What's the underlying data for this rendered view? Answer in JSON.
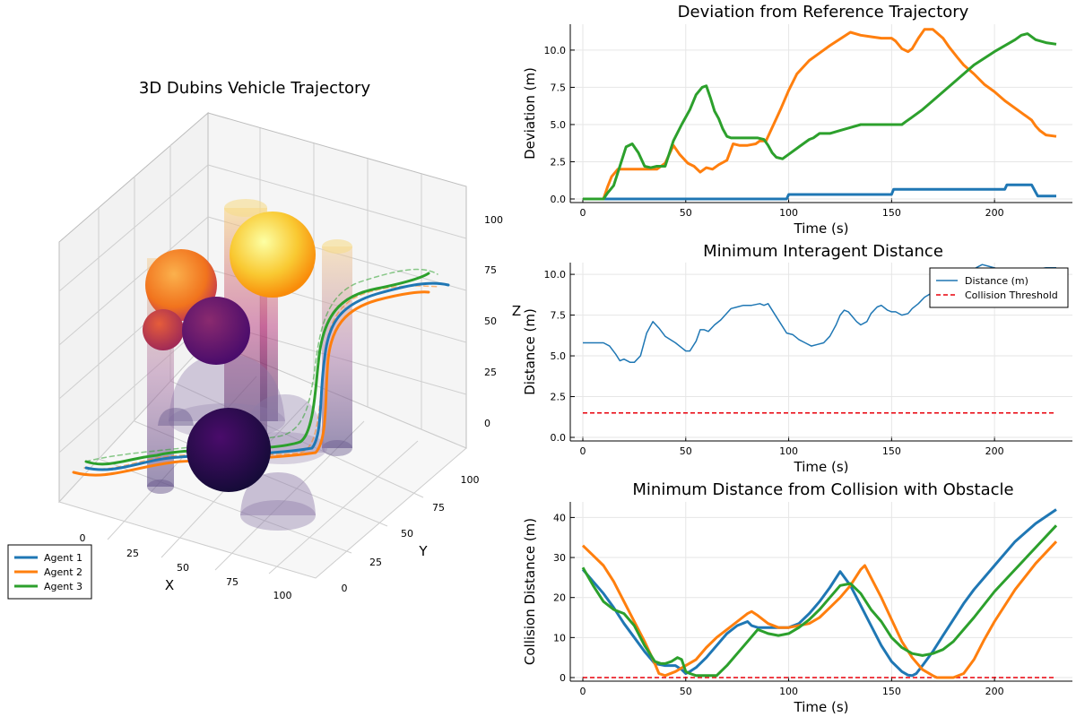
{
  "chart_data": [
    {
      "type": "3d-trajectory",
      "title": "3D Dubins Vehicle Trajectory",
      "xlabel": "X",
      "ylabel": "Y",
      "zlabel": "Z",
      "x_ticks": [
        "0",
        "25",
        "50",
        "75",
        "100"
      ],
      "y_ticks": [
        "0",
        "25",
        "50",
        "75",
        "100"
      ],
      "z_ticks": [
        "0",
        "25",
        "50",
        "75",
        "100"
      ],
      "legend": [
        "Agent 1",
        "Agent 2",
        "Agent 3"
      ],
      "legend_position": "bottom-left",
      "series_colors": [
        "#1f77b4",
        "#ff7f0e",
        "#2ca02c"
      ]
    },
    {
      "type": "line",
      "title": "Deviation from Reference Trajectory",
      "xlabel": "Time (s)",
      "ylabel": "Deviation (m)",
      "xlim": [
        0,
        230
      ],
      "ylim": [
        0,
        11.5
      ],
      "x_ticks": [
        "0",
        "50",
        "100",
        "150",
        "200"
      ],
      "y_ticks": [
        "0.0",
        "2.5",
        "5.0",
        "7.5",
        "10.0"
      ],
      "grid": true,
      "series": [
        {
          "color": "#1f77b4",
          "x": [
            0,
            99,
            100,
            150,
            151,
            205,
            206,
            218,
            221,
            230
          ],
          "y": [
            0,
            0,
            0.3,
            0.3,
            0.65,
            0.65,
            0.95,
            0.95,
            0.2,
            0.2
          ]
        },
        {
          "color": "#ff7f0e",
          "x": [
            0,
            10,
            12,
            14,
            17,
            20,
            25,
            30,
            33,
            36,
            40,
            44,
            47,
            51,
            54,
            57,
            60,
            63,
            66,
            70,
            73,
            76,
            80,
            84,
            86,
            89,
            92,
            96,
            100,
            104,
            110,
            115,
            120,
            130,
            135,
            140,
            145,
            150,
            152,
            155,
            158,
            160,
            163,
            166,
            170,
            175,
            178,
            182,
            185,
            190,
            195,
            200,
            205,
            210,
            215,
            218,
            220,
            222,
            225,
            230
          ],
          "y": [
            0,
            0,
            0.8,
            1.5,
            2.0,
            2.0,
            2.0,
            2.0,
            2.0,
            2.0,
            2.4,
            3.6,
            3.0,
            2.4,
            2.2,
            1.8,
            2.1,
            2.0,
            2.3,
            2.6,
            3.7,
            3.6,
            3.6,
            3.7,
            3.9,
            3.9,
            4.8,
            6.0,
            7.3,
            8.4,
            9.3,
            9.8,
            10.3,
            11.2,
            11.0,
            10.9,
            10.8,
            10.8,
            10.6,
            10.1,
            9.9,
            10.1,
            10.8,
            11.4,
            11.4,
            10.8,
            10.2,
            9.5,
            9.0,
            8.4,
            7.7,
            7.2,
            6.6,
            6.1,
            5.6,
            5.3,
            4.9,
            4.6,
            4.3,
            4.2
          ]
        },
        {
          "color": "#2ca02c",
          "x": [
            0,
            10,
            12,
            15,
            18,
            21,
            24,
            27,
            30,
            33,
            36,
            40,
            44,
            48,
            52,
            55,
            58,
            60,
            62,
            64,
            66,
            68,
            70,
            72,
            74,
            80,
            85,
            88,
            90,
            92,
            94,
            97,
            100,
            105,
            110,
            112,
            115,
            120,
            125,
            130,
            135,
            140,
            145,
            150,
            155,
            157,
            160,
            165,
            170,
            180,
            190,
            200,
            205,
            210,
            213,
            216,
            220,
            225,
            230
          ],
          "y": [
            0,
            0,
            0.4,
            0.9,
            2.2,
            3.5,
            3.7,
            3.1,
            2.2,
            2.1,
            2.2,
            2.2,
            3.9,
            5.0,
            6.0,
            7.0,
            7.5,
            7.6,
            6.8,
            5.9,
            5.4,
            4.7,
            4.2,
            4.1,
            4.1,
            4.1,
            4.1,
            4.0,
            3.6,
            3.1,
            2.8,
            2.7,
            3.0,
            3.5,
            4.0,
            4.1,
            4.4,
            4.4,
            4.6,
            4.8,
            5.0,
            5.0,
            5.0,
            5.0,
            5.0,
            5.2,
            5.5,
            6.0,
            6.6,
            7.8,
            9.0,
            9.9,
            10.3,
            10.7,
            11.0,
            11.1,
            10.7,
            10.5,
            10.4
          ]
        }
      ]
    },
    {
      "type": "line",
      "title": "Minimum Interagent Distance",
      "xlabel": "Time (s)",
      "ylabel": "Distance (m)",
      "xlim": [
        0,
        230
      ],
      "ylim": [
        0,
        10.5
      ],
      "x_ticks": [
        "0",
        "50",
        "100",
        "150",
        "200"
      ],
      "y_ticks": [
        "0.0",
        "2.5",
        "5.0",
        "7.5",
        "10.0"
      ],
      "grid": true,
      "legend_position": "top-right",
      "series": [
        {
          "name": "Distance (m)",
          "color": "#1f77b4",
          "dashed": false,
          "x": [
            0,
            10,
            13,
            16,
            18,
            20,
            23,
            25,
            28,
            31,
            34,
            37,
            40,
            45,
            50,
            52,
            55,
            57,
            59,
            61,
            64,
            67,
            72,
            75,
            78,
            82,
            86,
            88,
            90,
            93,
            96,
            99,
            102,
            105,
            108,
            111,
            114,
            117,
            120,
            123,
            125,
            127,
            129,
            131,
            133,
            135,
            138,
            140,
            143,
            145,
            148,
            150,
            152,
            155,
            158,
            160,
            163,
            166,
            170,
            175,
            180,
            185,
            188,
            191,
            194,
            197,
            200,
            205,
            210,
            215,
            220,
            225,
            230
          ],
          "y": [
            5.8,
            5.8,
            5.6,
            5.1,
            4.7,
            4.8,
            4.6,
            4.6,
            5.0,
            6.4,
            7.1,
            6.7,
            6.2,
            5.8,
            5.3,
            5.3,
            5.9,
            6.6,
            6.6,
            6.5,
            6.9,
            7.2,
            7.9,
            8.0,
            8.1,
            8.1,
            8.2,
            8.1,
            8.2,
            7.6,
            7.0,
            6.4,
            6.3,
            6.0,
            5.8,
            5.6,
            5.7,
            5.8,
            6.2,
            6.9,
            7.5,
            7.8,
            7.7,
            7.4,
            7.1,
            6.9,
            7.1,
            7.6,
            8.0,
            8.1,
            7.8,
            7.7,
            7.7,
            7.5,
            7.6,
            7.9,
            8.2,
            8.6,
            8.9,
            9.2,
            9.6,
            9.8,
            10.1,
            10.4,
            10.6,
            10.5,
            10.4,
            10.2,
            10.2,
            10.3,
            10.3,
            10.4,
            10.4
          ]
        },
        {
          "name": "Collision Threshold",
          "color": "#e8000b",
          "dashed": true,
          "x": [
            0,
            230
          ],
          "y": [
            1.5,
            1.5
          ]
        }
      ]
    },
    {
      "type": "line",
      "title": "Minimum Distance from Collision with Obstacle",
      "xlabel": "Time (s)",
      "ylabel": "Collision Distance (m)",
      "xlim": [
        0,
        230
      ],
      "ylim": [
        0,
        43
      ],
      "x_ticks": [
        "0",
        "50",
        "100",
        "150",
        "200"
      ],
      "y_ticks": [
        "0",
        "10",
        "20",
        "30",
        "40"
      ],
      "grid": true,
      "series": [
        {
          "color": "#e8000b",
          "dashed": true,
          "x": [
            0,
            230
          ],
          "y": [
            0,
            0
          ]
        },
        {
          "color": "#1f77b4",
          "x": [
            0,
            5,
            10,
            15,
            20,
            25,
            30,
            35,
            40,
            45,
            48,
            50,
            52,
            55,
            60,
            65,
            70,
            75,
            80,
            82,
            85,
            90,
            95,
            100,
            105,
            110,
            115,
            120,
            125,
            130,
            135,
            140,
            145,
            150,
            155,
            158,
            160,
            162,
            165,
            170,
            175,
            180,
            185,
            190,
            195,
            200,
            210,
            220,
            230
          ],
          "y": [
            27,
            24,
            21,
            17.5,
            13.5,
            10,
            6.5,
            3.5,
            3,
            3,
            2,
            1,
            1.5,
            2.5,
            5,
            8,
            11,
            13,
            14,
            13,
            12.5,
            12.5,
            12.5,
            12.5,
            13.5,
            16,
            19,
            22.5,
            26.5,
            23,
            18,
            13,
            8,
            4,
            1.5,
            0.6,
            0.5,
            1,
            3,
            6.5,
            10.5,
            14.5,
            18.5,
            22,
            25,
            28,
            34,
            38.5,
            42
          ]
        },
        {
          "color": "#ff7f0e",
          "x": [
            0,
            5,
            10,
            15,
            20,
            25,
            30,
            35,
            37,
            40,
            45,
            50,
            55,
            60,
            65,
            70,
            75,
            80,
            82,
            85,
            90,
            95,
            100,
            105,
            110,
            115,
            120,
            125,
            130,
            135,
            137,
            140,
            145,
            150,
            155,
            160,
            165,
            170,
            172,
            175,
            180,
            185,
            190,
            195,
            200,
            210,
            220,
            230
          ],
          "y": [
            33,
            30.5,
            28,
            24,
            19,
            14,
            9,
            3.5,
            1,
            0.5,
            1.5,
            3,
            4.5,
            7.5,
            10,
            12,
            14,
            16,
            16.5,
            15.5,
            13.5,
            12.5,
            12.5,
            13,
            13.5,
            15,
            17.5,
            20,
            23,
            27,
            28,
            25,
            20,
            14.5,
            9,
            5,
            2,
            0.5,
            0,
            0,
            0,
            1,
            4.5,
            9.5,
            14,
            22,
            28.5,
            34
          ]
        },
        {
          "color": "#2ca02c",
          "x": [
            0,
            5,
            10,
            15,
            20,
            25,
            30,
            35,
            38,
            40,
            43,
            46,
            48,
            50,
            52,
            55,
            60,
            65,
            70,
            75,
            80,
            85,
            90,
            95,
            100,
            105,
            110,
            115,
            120,
            125,
            130,
            135,
            140,
            145,
            150,
            155,
            160,
            165,
            170,
            175,
            180,
            185,
            190,
            200,
            210,
            220,
            230
          ],
          "y": [
            27.5,
            23,
            19,
            17,
            16,
            13,
            8,
            4,
            3.5,
            3.5,
            4,
            5,
            4.5,
            1.5,
            1,
            0.5,
            0.5,
            0.5,
            3,
            6,
            9,
            12,
            11,
            10.5,
            11,
            12.5,
            14.5,
            17,
            20,
            23,
            23.5,
            21,
            17,
            14,
            10,
            7.5,
            6,
            5.5,
            6,
            7,
            9,
            12,
            15,
            21.5,
            27,
            32.5,
            38
          ]
        }
      ]
    }
  ]
}
